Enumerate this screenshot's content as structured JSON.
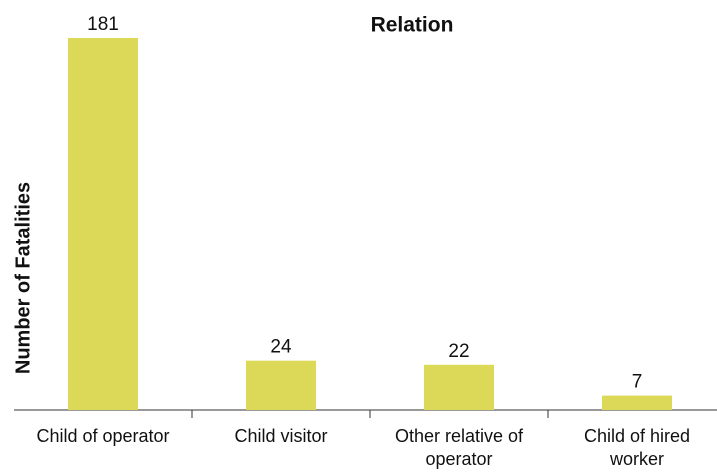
{
  "chart_data": {
    "type": "bar",
    "title": "Relation",
    "y_label": "Number of Fatalities",
    "categories": [
      "Child of operator",
      "Child visitor",
      "Other relative of operator",
      "Child of hired worker"
    ],
    "values": [
      181,
      24,
      22,
      7
    ],
    "color": "#dbd957"
  }
}
